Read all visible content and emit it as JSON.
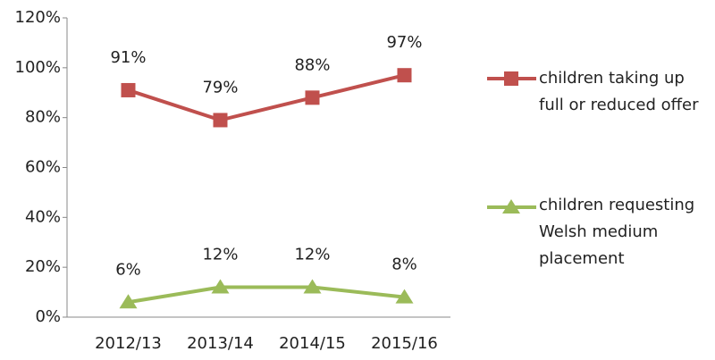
{
  "chart_data": {
    "type": "line",
    "categories": [
      "2012/13",
      "2013/14",
      "2014/15",
      "2015/16"
    ],
    "series": [
      {
        "name": "children taking up full or reduced offer",
        "color": "#c0504d",
        "marker": "square",
        "values": [
          91,
          79,
          88,
          97
        ],
        "value_labels": [
          "91%",
          "79%",
          "88%",
          "97%"
        ]
      },
      {
        "name": "children requesting Welsh medium placement",
        "color": "#9bbb59",
        "marker": "triangle",
        "values": [
          6,
          12,
          12,
          8
        ],
        "value_labels": [
          "6%",
          "12%",
          "12%",
          "8%"
        ]
      }
    ],
    "ylim": [
      0,
      120
    ],
    "yticks": [
      {
        "value": 0,
        "label": "0%"
      },
      {
        "value": 20,
        "label": "20%"
      },
      {
        "value": 40,
        "label": "40%"
      },
      {
        "value": 60,
        "label": "60%"
      },
      {
        "value": 80,
        "label": "80%"
      },
      {
        "value": 100,
        "label": "100%"
      },
      {
        "value": 120,
        "label": "120%"
      }
    ],
    "grid": false,
    "legend": "right"
  }
}
